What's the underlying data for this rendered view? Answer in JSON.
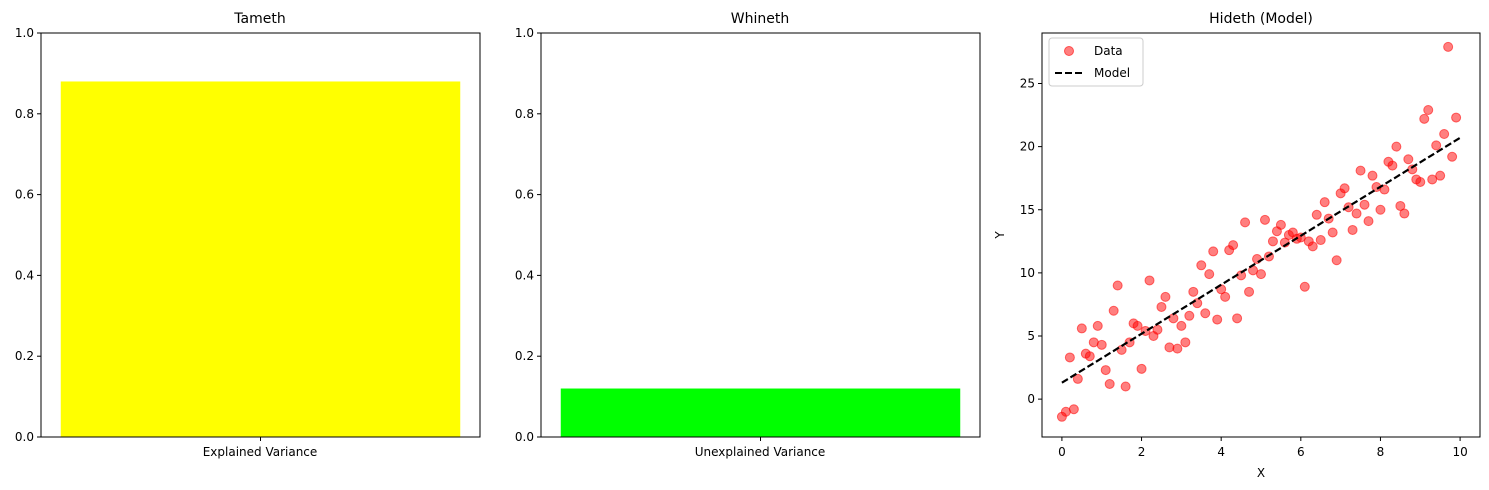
{
  "chart_data": [
    {
      "type": "bar",
      "title": "Tameth",
      "categories": [
        "Explained Variance"
      ],
      "values": [
        0.88
      ],
      "ylim": [
        0,
        1
      ],
      "yticks": [
        "0.0",
        "0.2",
        "0.4",
        "0.6",
        "0.8",
        "1.0"
      ],
      "color": "#ffff00"
    },
    {
      "type": "bar",
      "title": "Whineth",
      "categories": [
        "Unexplained Variance"
      ],
      "values": [
        0.12
      ],
      "ylim": [
        0,
        1
      ],
      "yticks": [
        "0.0",
        "0.2",
        "0.4",
        "0.6",
        "0.8",
        "1.0"
      ],
      "color": "#00ff00"
    },
    {
      "type": "scatter",
      "title": "Hideth (Model)",
      "xlabel": "X",
      "ylabel": "Y",
      "xlim": [
        -0.5,
        10.5
      ],
      "ylim": [
        -3,
        29
      ],
      "xticks": [
        "0",
        "2",
        "4",
        "6",
        "8",
        "10"
      ],
      "yticks": [
        "0",
        "5",
        "10",
        "15",
        "20",
        "25"
      ],
      "legend": {
        "position": "upper-left",
        "data_label": "Data",
        "model_label": "Model"
      },
      "scatter_color": "#ff0000",
      "model_color": "#000000",
      "model_line": {
        "x": [
          0,
          10
        ],
        "y": [
          1.3,
          20.7
        ]
      },
      "series": [
        {
          "name": "Data",
          "points": [
            [
              0.0,
              -1.4
            ],
            [
              0.1,
              -1.0
            ],
            [
              0.2,
              3.3
            ],
            [
              0.3,
              -0.8
            ],
            [
              0.4,
              1.6
            ],
            [
              0.5,
              5.6
            ],
            [
              0.6,
              3.6
            ],
            [
              0.7,
              3.4
            ],
            [
              0.8,
              4.5
            ],
            [
              0.9,
              5.8
            ],
            [
              1.0,
              4.3
            ],
            [
              1.1,
              2.3
            ],
            [
              1.2,
              1.2
            ],
            [
              1.3,
              7.0
            ],
            [
              1.4,
              9.0
            ],
            [
              1.5,
              3.9
            ],
            [
              1.6,
              1.0
            ],
            [
              1.7,
              4.5
            ],
            [
              1.8,
              6.0
            ],
            [
              1.9,
              5.8
            ],
            [
              2.0,
              2.4
            ],
            [
              2.1,
              5.4
            ],
            [
              2.2,
              9.4
            ],
            [
              2.3,
              5.0
            ],
            [
              2.4,
              5.5
            ],
            [
              2.5,
              7.3
            ],
            [
              2.6,
              8.1
            ],
            [
              2.7,
              4.1
            ],
            [
              2.8,
              6.4
            ],
            [
              2.9,
              4.0
            ],
            [
              3.0,
              5.8
            ],
            [
              3.1,
              4.5
            ],
            [
              3.2,
              6.6
            ],
            [
              3.3,
              8.5
            ],
            [
              3.4,
              7.6
            ],
            [
              3.5,
              10.6
            ],
            [
              3.6,
              6.8
            ],
            [
              3.7,
              9.9
            ],
            [
              3.8,
              11.7
            ],
            [
              3.9,
              6.3
            ],
            [
              4.0,
              8.7
            ],
            [
              4.1,
              8.1
            ],
            [
              4.2,
              11.8
            ],
            [
              4.3,
              12.2
            ],
            [
              4.4,
              6.4
            ],
            [
              4.5,
              9.8
            ],
            [
              4.6,
              14.0
            ],
            [
              4.7,
              8.5
            ],
            [
              4.8,
              10.2
            ],
            [
              4.9,
              11.1
            ],
            [
              5.0,
              9.9
            ],
            [
              5.1,
              14.2
            ],
            [
              5.2,
              11.3
            ],
            [
              5.3,
              12.5
            ],
            [
              5.4,
              13.3
            ],
            [
              5.5,
              13.8
            ],
            [
              5.6,
              12.4
            ],
            [
              5.7,
              13.0
            ],
            [
              5.8,
              13.2
            ],
            [
              5.9,
              12.7
            ],
            [
              6.0,
              12.8
            ],
            [
              6.1,
              8.9
            ],
            [
              6.2,
              12.5
            ],
            [
              6.3,
              12.1
            ],
            [
              6.4,
              14.6
            ],
            [
              6.5,
              12.6
            ],
            [
              6.6,
              15.6
            ],
            [
              6.7,
              14.3
            ],
            [
              6.8,
              13.2
            ],
            [
              6.9,
              11.0
            ],
            [
              7.0,
              16.3
            ],
            [
              7.1,
              16.7
            ],
            [
              7.2,
              15.2
            ],
            [
              7.3,
              13.4
            ],
            [
              7.4,
              14.7
            ],
            [
              7.5,
              18.1
            ],
            [
              7.6,
              15.4
            ],
            [
              7.7,
              14.1
            ],
            [
              7.8,
              17.7
            ],
            [
              7.9,
              16.8
            ],
            [
              8.0,
              15.0
            ],
            [
              8.1,
              16.6
            ],
            [
              8.2,
              18.8
            ],
            [
              8.3,
              18.5
            ],
            [
              8.4,
              20.0
            ],
            [
              8.5,
              15.3
            ],
            [
              8.6,
              14.7
            ],
            [
              8.7,
              19.0
            ],
            [
              8.8,
              18.2
            ],
            [
              8.9,
              17.4
            ],
            [
              9.0,
              17.2
            ],
            [
              9.1,
              22.2
            ],
            [
              9.2,
              22.9
            ],
            [
              9.3,
              17.4
            ],
            [
              9.4,
              20.1
            ],
            [
              9.5,
              17.7
            ],
            [
              9.6,
              21.0
            ],
            [
              9.7,
              27.9
            ],
            [
              9.8,
              19.2
            ],
            [
              9.9,
              22.3
            ]
          ]
        }
      ]
    }
  ]
}
